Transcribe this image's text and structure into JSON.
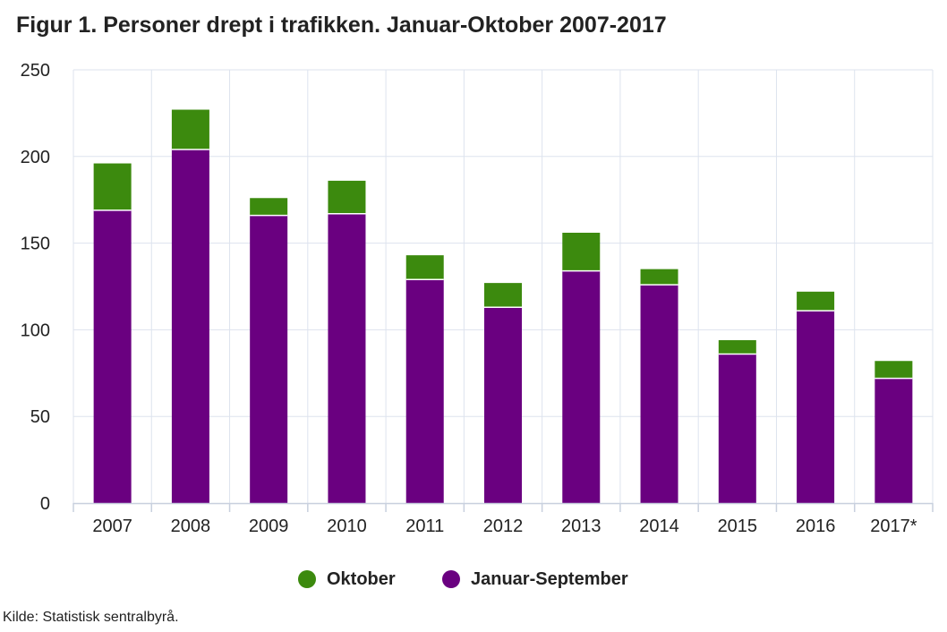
{
  "title": "Figur 1. Personer drept i trafikken. Januar-Oktober 2007-2017",
  "source": "Kilde: Statistisk sentralbyrå.",
  "colors": {
    "januar_september": "#6a0080",
    "oktober": "#3c8a0e",
    "grid": "#dde3ee",
    "axis": "#c8d0de"
  },
  "chart_data": {
    "type": "bar",
    "stacked": true,
    "categories": [
      "2007",
      "2008",
      "2009",
      "2010",
      "2011",
      "2012",
      "2013",
      "2014",
      "2015",
      "2016",
      "2017*"
    ],
    "series": [
      {
        "name": "Januar-September",
        "color": "#6a0080",
        "values": [
          169,
          204,
          166,
          167,
          129,
          113,
          134,
          126,
          86,
          111,
          72
        ]
      },
      {
        "name": "Oktober",
        "color": "#3c8a0e",
        "values": [
          27,
          23,
          10,
          19,
          14,
          14,
          22,
          9,
          8,
          11,
          10
        ]
      }
    ],
    "ylim": [
      0,
      250
    ],
    "yticks": [
      0,
      50,
      100,
      150,
      200,
      250
    ],
    "grid": true,
    "legend_position": "bottom"
  },
  "legend": [
    {
      "label": "Oktober",
      "color": "#3c8a0e"
    },
    {
      "label": "Januar-September",
      "color": "#6a0080"
    }
  ]
}
